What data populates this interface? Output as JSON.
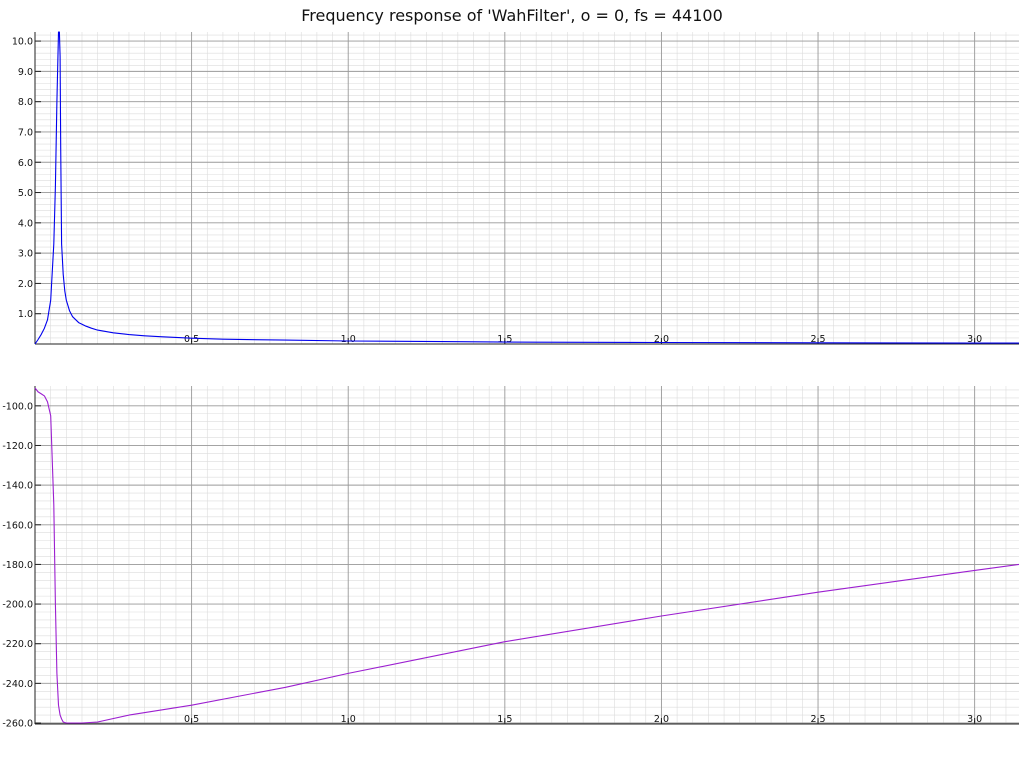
{
  "title": "Frequency response of 'WahFilter', o = 0, fs = 44100",
  "colors": {
    "magnitude": "#0000ee",
    "phase": "#9c1fd0",
    "grid_major": "#9a9a9a",
    "grid_minor": "#dcdcdc",
    "axis": "#222222"
  },
  "chart_data": [
    {
      "type": "line",
      "name": "magnitude",
      "grid": true,
      "xlim": [
        0,
        3.1416
      ],
      "ylim": [
        0,
        10.3
      ],
      "xticks": [
        0.5,
        1.0,
        1.5,
        2.0,
        2.5,
        3.0
      ],
      "xtick_labels": [
        "0.5",
        "1.0",
        "1.5",
        "2.0",
        "2.5",
        "3.0"
      ],
      "yticks": [
        1,
        2,
        3,
        4,
        5,
        6,
        7,
        8,
        9,
        10
      ],
      "ytick_labels": [
        "1.0",
        "2.0",
        "3.0",
        "4.0",
        "5.0",
        "6.0",
        "7.0",
        "8.0",
        "9.0",
        "10.0"
      ],
      "series": [
        {
          "x": [
            0,
            0.01,
            0.02,
            0.03,
            0.04,
            0.05,
            0.06,
            0.065,
            0.07,
            0.075,
            0.078,
            0.08,
            0.082,
            0.085,
            0.09,
            0.095,
            0.1,
            0.11,
            0.12,
            0.14,
            0.16,
            0.18,
            0.2,
            0.25,
            0.3,
            0.35,
            0.4,
            0.5,
            0.6,
            0.8,
            1.0,
            1.3,
            1.6,
            2.0,
            2.5,
            3.0,
            3.1416
          ],
          "y": [
            0,
            0.15,
            0.32,
            0.52,
            0.8,
            1.45,
            3.3,
            5.2,
            8.0,
            10.3,
            10.3,
            9.5,
            6.5,
            3.3,
            2.3,
            1.75,
            1.45,
            1.1,
            0.9,
            0.7,
            0.6,
            0.52,
            0.46,
            0.37,
            0.31,
            0.27,
            0.24,
            0.19,
            0.16,
            0.13,
            0.1,
            0.08,
            0.06,
            0.05,
            0.04,
            0.03,
            0.03
          ]
        }
      ]
    },
    {
      "type": "line",
      "name": "phase",
      "grid": true,
      "xlim": [
        0,
        3.1416
      ],
      "ylim": [
        -260.5,
        -90
      ],
      "xticks": [
        0.5,
        1.0,
        1.5,
        2.0,
        2.5,
        3.0
      ],
      "xtick_labels": [
        "0.5",
        "1.0",
        "1.5",
        "2.0",
        "2.5",
        "3.0"
      ],
      "yticks": [
        -100,
        -120,
        -140,
        -160,
        -180,
        -200,
        -220,
        -240,
        -260
      ],
      "ytick_labels": [
        "-100.0",
        "-120.0",
        "-140.0",
        "-160.0",
        "-180.0",
        "-200.0",
        "-220.0",
        "-240.0",
        "-260.0"
      ],
      "series": [
        {
          "x": [
            0,
            0.01,
            0.02,
            0.03,
            0.04,
            0.05,
            0.06,
            0.065,
            0.07,
            0.075,
            0.08,
            0.085,
            0.09,
            0.1,
            0.12,
            0.15,
            0.2,
            0.3,
            0.5,
            0.8,
            1.0,
            1.5,
            2.0,
            2.5,
            3.0,
            3.1416
          ],
          "y": [
            -91,
            -93,
            -94,
            -95,
            -98,
            -105,
            -150,
            -200,
            -235,
            -251,
            -256,
            -258,
            -259.5,
            -260,
            -260,
            -260,
            -259.5,
            -256,
            -251,
            -242,
            -235,
            -219,
            -206,
            -194,
            -183,
            -180
          ]
        }
      ]
    }
  ]
}
